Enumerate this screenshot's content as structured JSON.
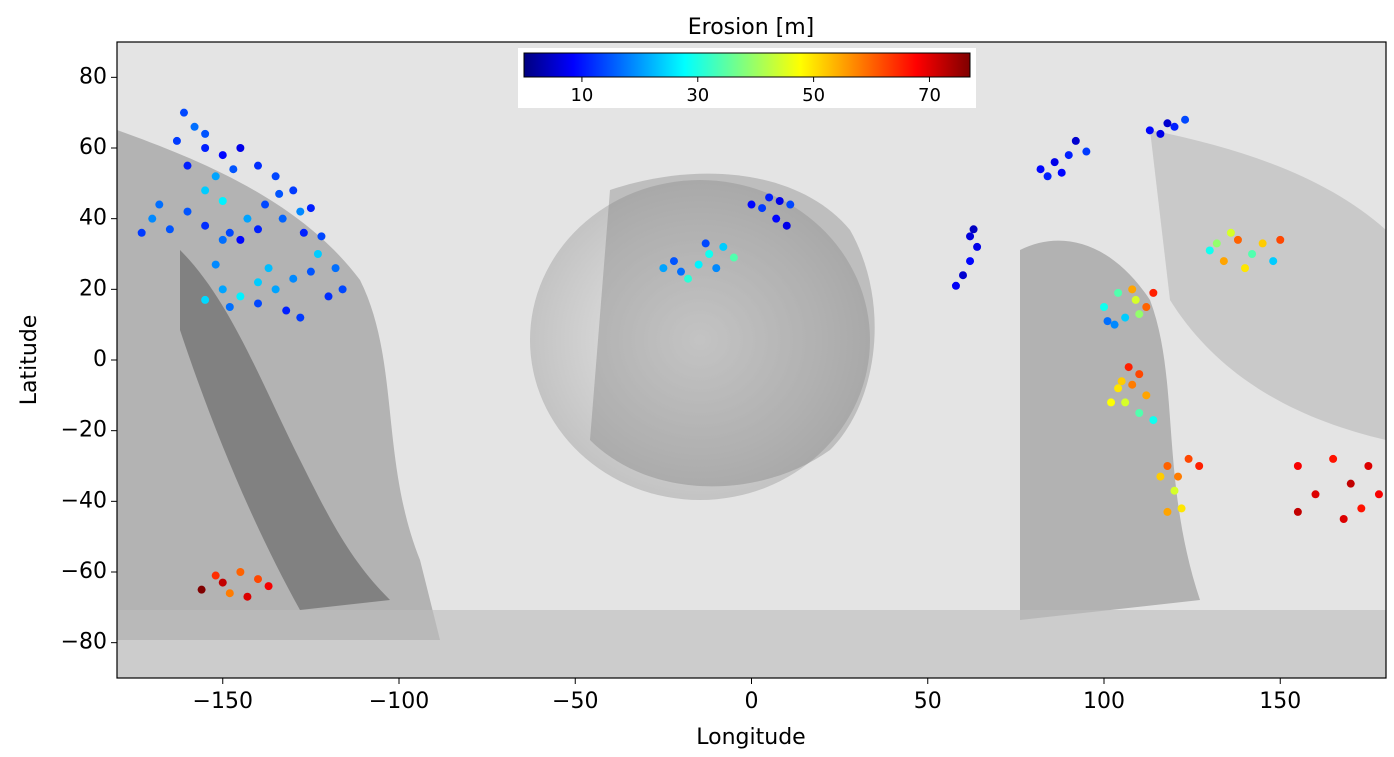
{
  "chart_data": {
    "type": "scatter",
    "title": "Erosion [m]",
    "x_label": "Longitude",
    "y_label": "Latitude",
    "xlim": [
      -180,
      180
    ],
    "ylim": [
      -90,
      90
    ],
    "xticks": [
      {
        "value": -150,
        "label": "−150"
      },
      {
        "value": -100,
        "label": "−100"
      },
      {
        "value": -50,
        "label": "−50"
      },
      0,
      50,
      100,
      150
    ],
    "yticks": [
      {
        "value": -80,
        "label": "−80"
      },
      {
        "value": -60,
        "label": "−60"
      },
      {
        "value": -40,
        "label": "−40"
      },
      {
        "value": -20,
        "label": "−20"
      },
      0,
      20,
      40,
      60,
      80
    ],
    "colorbar": {
      "lim": [
        0,
        77
      ],
      "ticks": [
        10,
        30,
        50,
        70
      ],
      "colormap": "jet"
    },
    "x": [
      -161,
      -158,
      -163,
      -155,
      -150,
      -145,
      -160,
      -152,
      -147,
      -140,
      -135,
      -130,
      -125,
      -128,
      -134,
      -138,
      -155,
      -150,
      -160,
      -170,
      -173,
      -165,
      -155,
      -148,
      -145,
      -150,
      -140,
      -143,
      -133,
      -127,
      -122,
      -123,
      -118,
      -125,
      -130,
      -135,
      -140,
      -145,
      -150,
      -155,
      -148,
      -140,
      -132,
      -128,
      -120,
      -116,
      -137,
      -152,
      -168,
      -155,
      0,
      5,
      8,
      3,
      7,
      10,
      11,
      -25,
      -20,
      -15,
      -12,
      -8,
      -5,
      -10,
      -18,
      -13,
      -22,
      63,
      64,
      62,
      60,
      58,
      62,
      82,
      86,
      90,
      92,
      95,
      88,
      84,
      113,
      116,
      120,
      123,
      118,
      130,
      134,
      138,
      142,
      145,
      148,
      150,
      136,
      140,
      132,
      100,
      103,
      106,
      109,
      112,
      114,
      108,
      104,
      101,
      110,
      107,
      110,
      104,
      106,
      110,
      114,
      112,
      108,
      102,
      105,
      116,
      118,
      120,
      122,
      124,
      118,
      127,
      121,
      155,
      160,
      165,
      170,
      175,
      178,
      168,
      155,
      173,
      -156,
      -150,
      -145,
      -143,
      -140,
      -137,
      -148,
      -152
    ],
    "y": [
      70,
      66,
      62,
      60,
      58,
      60,
      55,
      52,
      54,
      55,
      52,
      48,
      43,
      42,
      47,
      44,
      48,
      45,
      42,
      40,
      36,
      37,
      38,
      36,
      34,
      34,
      37,
      40,
      40,
      36,
      35,
      30,
      26,
      25,
      23,
      20,
      22,
      18,
      20,
      17,
      15,
      16,
      14,
      12,
      18,
      20,
      26,
      27,
      44,
      64,
      44,
      46,
      45,
      43,
      40,
      38,
      44,
      26,
      25,
      27,
      30,
      32,
      29,
      26,
      23,
      33,
      28,
      37,
      32,
      28,
      24,
      21,
      35,
      54,
      56,
      58,
      62,
      59,
      53,
      52,
      65,
      64,
      66,
      68,
      67,
      31,
      28,
      34,
      30,
      33,
      28,
      34,
      36,
      26,
      33,
      15,
      10,
      12,
      17,
      15,
      19,
      20,
      19,
      11,
      13,
      -2,
      -4,
      -8,
      -12,
      -15,
      -17,
      -10,
      -7,
      -12,
      -6,
      -33,
      -30,
      -37,
      -42,
      -28,
      -43,
      -30,
      -33,
      -30,
      -38,
      -28,
      -35,
      -30,
      -38,
      -45,
      -43,
      -42,
      -65,
      -63,
      -60,
      -67,
      -62,
      -64,
      -66,
      -61
    ],
    "erosion": [
      15,
      18,
      14,
      12,
      10,
      8,
      12,
      22,
      16,
      13,
      15,
      14,
      12,
      20,
      16,
      15,
      25,
      28,
      16,
      20,
      14,
      16,
      13,
      15,
      10,
      18,
      12,
      22,
      17,
      12,
      15,
      25,
      18,
      16,
      20,
      22,
      25,
      28,
      22,
      26,
      18,
      15,
      12,
      14,
      13,
      15,
      24,
      20,
      18,
      16,
      10,
      12,
      8,
      14,
      10,
      8,
      15,
      22,
      18,
      28,
      30,
      25,
      35,
      20,
      32,
      15,
      16,
      5,
      8,
      10,
      6,
      9,
      7,
      10,
      8,
      12,
      6,
      14,
      10,
      12,
      10,
      8,
      12,
      15,
      6,
      30,
      55,
      60,
      35,
      52,
      25,
      62,
      45,
      50,
      40,
      30,
      20,
      25,
      45,
      60,
      65,
      55,
      35,
      18,
      40,
      65,
      62,
      50,
      45,
      35,
      30,
      55,
      58,
      48,
      52,
      52,
      60,
      45,
      50,
      62,
      55,
      65,
      58,
      68,
      70,
      66,
      72,
      70,
      68,
      70,
      72,
      66,
      77,
      72,
      60,
      70,
      62,
      68,
      58,
      64
    ]
  }
}
